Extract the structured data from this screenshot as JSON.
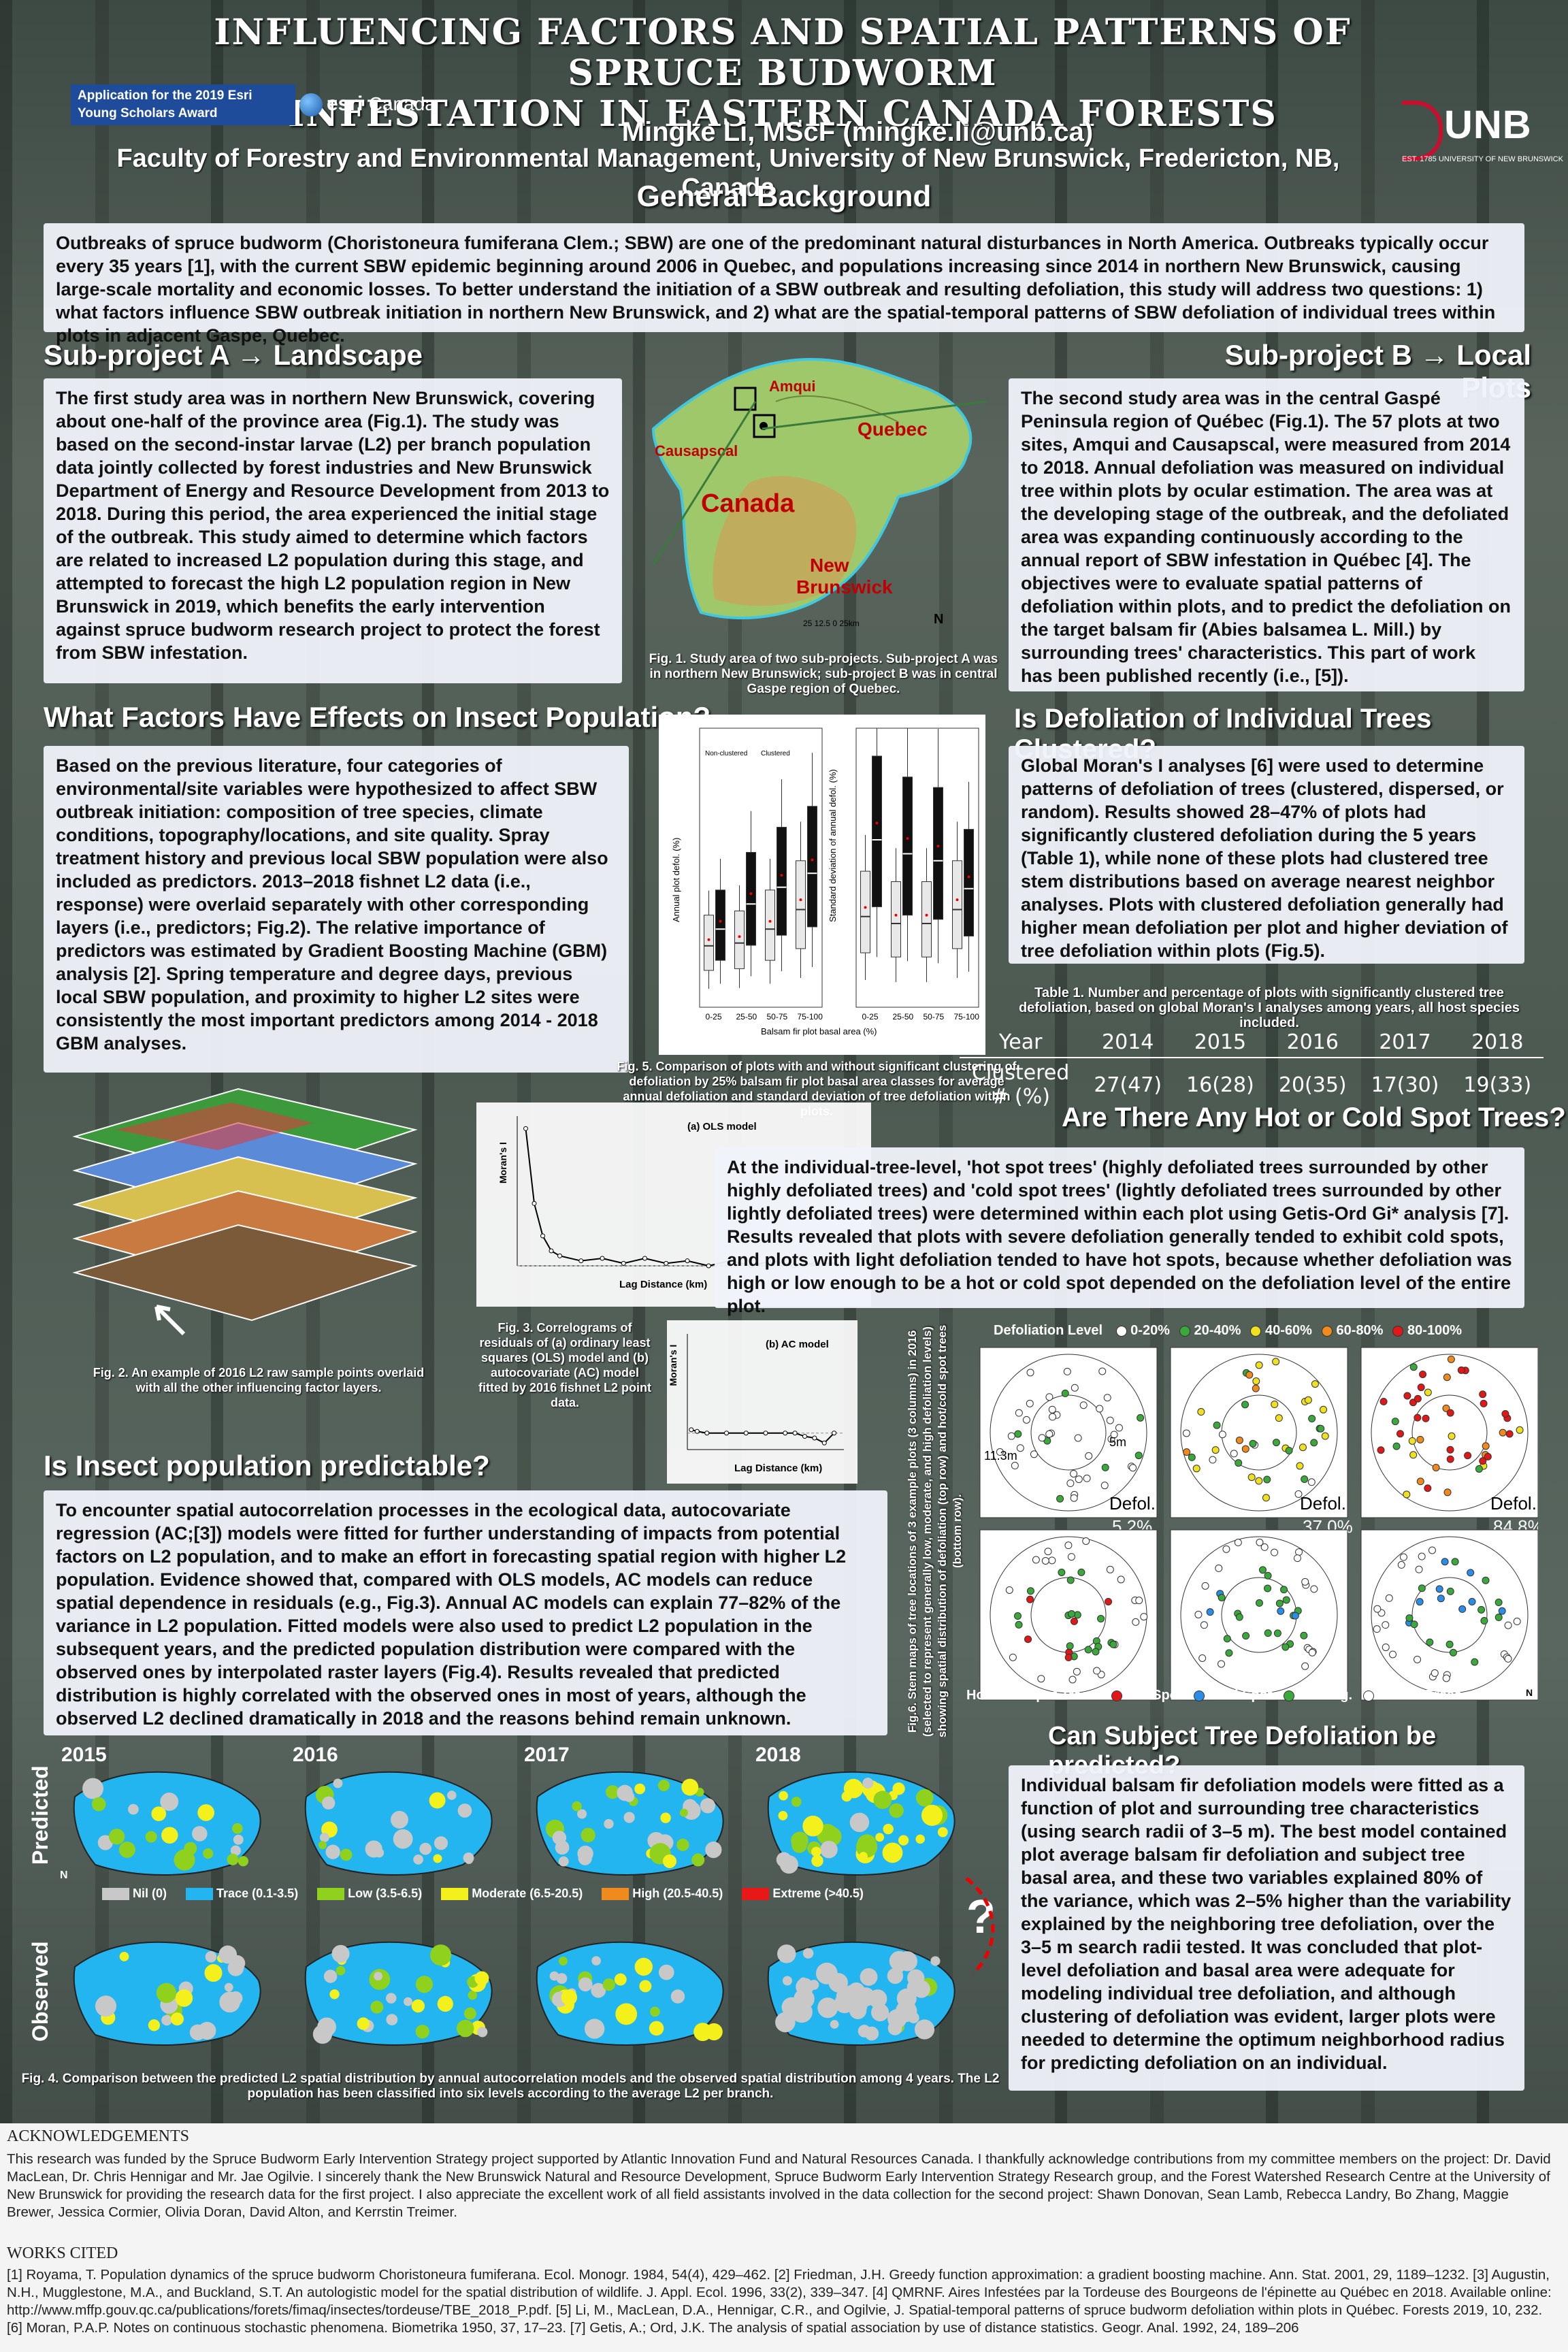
{
  "header": {
    "title_line1": "Influencing Factors and Spatial Patterns of Spruce Budworm",
    "title_line2": "Infestation in Eastern Canada Forests",
    "award": "Application for the 2019 Esri Young Scholars Award",
    "esri": "esri",
    "esri_sub": "Canada",
    "author": "Mingke Li, MScF  (mingke.li@unb.ca)",
    "affiliation": "Faculty of Forestry and Environmental Management, University of New Brunswick, Fredericton, NB, Canada",
    "unb": "UNB",
    "unb_sub": "EST. 1785   UNIVERSITY OF NEW BRUNSWICK"
  },
  "background": {
    "heading": "General Background",
    "text": "Outbreaks of spruce budworm (Choristoneura fumiferana Clem.; SBW) are one of the predominant natural disturbances in North America. Outbreaks typically occur every 35 years [1], with the current SBW epidemic beginning around 2006 in Quebec, and populations increasing since 2014 in northern New Brunswick, causing large-scale mortality and economic losses. To better understand the initiation of a SBW outbreak and resulting defoliation, this study will address two questions: 1) what factors influence SBW outbreak initiation in northern New Brunswick, and 2) what are the spatial-temporal patterns of SBW defoliation of individual trees within plots in adjacent Gaspe, Quebec."
  },
  "subA": {
    "heading": "Sub-project A → Landscape",
    "text": "The first study area was in northern New Brunswick, covering about one-half of the province area (Fig.1). The study was based on the second-instar larvae (L2) per branch population data jointly collected by forest industries and New Brunswick Department of Energy and Resource Development from 2013 to 2018. During this period, the area experienced the initial stage of the outbreak. This study aimed to determine which factors are related to increased L2 population during this stage, and attempted to forecast the high L2 population region in New Brunswick in 2019, which benefits the early intervention against spruce budworm research project to protect the forest from SBW infestation."
  },
  "subB": {
    "heading": "Sub-project B → Local Plots",
    "text": "The second study area was in the central Gaspé Peninsula region of Québec (Fig.1). The 57 plots at two sites, Amqui and Causapscal, were measured from 2014 to 2018. Annual defoliation was measured on individual tree within plots by ocular estimation. The area was at the developing stage of the outbreak, and the defoliated area was expanding continuously according to the annual report of SBW infestation in Québec [4]. The objectives were to evaluate spatial patterns of defoliation within plots, and to predict the defoliation on the target balsam fir (Abies balsamea L. Mill.) by surrounding trees' characteristics. This part of work has been published recently (i.e., [5])."
  },
  "map1": {
    "labels": [
      "Amqui",
      "Quebec",
      "Causapscal",
      "Canada",
      "New",
      "Brunswick"
    ],
    "scale": "25 12.5 0 25km",
    "north": "N",
    "caption": "Fig. 1. Study area of two sub-projects. Sub-project A was in northern New Brunswick; sub-project B was in central Gaspe region of Quebec."
  },
  "factors": {
    "heading": "What Factors Have Effects on Insect Population?",
    "text": "Based on the previous literature, four categories of environmental/site variables were hypothesized to affect SBW outbreak initiation: composition of tree species, climate conditions, topography/locations, and site quality. Spray treatment history and previous local SBW population were also included as predictors. 2013–2018 fishnet L2 data (i.e., response) were overlaid separately with other corresponding layers (i.e., predictors; Fig.2). The relative importance of predictors was estimated by Gradient Boosting Machine (GBM) analysis [2]. Spring temperature and degree days, previous local SBW population, and proximity to higher L2 sites were consistently the most important predictors among 2014 - 2018 GBM analyses."
  },
  "fig2": {
    "caption": "Fig. 2. An example of 2016 L2 raw sample points overlaid with all the other influencing factor layers."
  },
  "fig3": {
    "caption": "Fig. 3. Correlograms of residuals of (a) ordinary least squares (OLS) model and (b) autocovariate (AC) model fitted by 2016 fishnet L2 point data.",
    "ols_label": "(a) OLS model",
    "ac_label": "(b) AC model",
    "ylabel": "Moran's I",
    "xlabel": "Lag Distance (km)"
  },
  "fig5": {
    "caption": "Fig. 5. Comparison of plots with and without significant clustering of defoliation by 25% balsam fir plot basal area classes for average annual defoliation and standard deviation of tree defoliation within plots.",
    "ylabel_left": "Annual plot defol. (%)",
    "ylabel_right": "Standard deviation of annual defol. (%)",
    "xlabel": "Balsam fir plot basal area (%)",
    "legend_non": "Non-clustered",
    "legend_cl": "Clustered"
  },
  "predictable": {
    "heading": "Is Insect population predictable?",
    "text": "To encounter spatial autocorrelation processes in the ecological data, autocovariate regression (AC;[3]) models were fitted for further understanding of impacts from potential factors on L2 population, and to make an effort in forecasting spatial region with higher L2 population. Evidence showed that, compared with OLS models, AC models can reduce spatial dependence in residuals (e.g., Fig.3). Annual AC models can explain 77–82% of the variance in L2 population. Fitted models were also used to predict L2 population in the subsequent years, and the predicted population distribution were compared with the observed ones by interpolated raster layers (Fig.4). Results revealed that predicted distribution is highly correlated with the observed ones in most of years, although the observed L2 declined dramatically in 2018 and the reasons behind remain unknown."
  },
  "fig4": {
    "years": [
      "2015",
      "2016",
      "2017",
      "2018"
    ],
    "row_pred": "Predicted",
    "row_obs": "Observed",
    "north": "N",
    "q": "?",
    "legend": [
      {
        "label": "Nil (0)",
        "color": "#c8c8c8"
      },
      {
        "label": "Trace (0.1-3.5)",
        "color": "#22b5f0"
      },
      {
        "label": "Low (3.5-6.5)",
        "color": "#8fd11c"
      },
      {
        "label": "Moderate (6.5-20.5)",
        "color": "#f4f01c"
      },
      {
        "label": "High (20.5-40.5)",
        "color": "#f08a1c"
      },
      {
        "label": "Extreme (>40.5)",
        "color": "#e81818"
      }
    ],
    "caption": "Fig. 4. Comparison between the predicted L2 spatial distribution by annual autocorrelation models and the observed spatial distribution among 4 years. The L2 population has been classified into six levels according to the average L2 per branch."
  },
  "clustered": {
    "heading": "Is Defoliation of Individual Trees Clustered?",
    "text": "Global Moran's I analyses [6] were used to determine patterns of defoliation of trees (clustered, dispersed, or random). Results showed 28–47% of plots had significantly clustered defoliation during the 5 years (Table 1), while none of these plots had clustered tree stem distributions based on average nearest neighbor analyses. Plots with clustered defoliation generally had higher mean defoliation per plot and higher deviation of tree defoliation within plots (Fig.5)."
  },
  "table1": {
    "caption": "Table 1. Number and percentage of plots with significantly clustered tree defoliation, based on global Moran's I analyses among years, all host species included.",
    "header": [
      "Year",
      "2014",
      "2015",
      "2016",
      "2017",
      "2018"
    ],
    "row": [
      "Clustered # (%)",
      "27(47)",
      "16(28)",
      "20(35)",
      "17(30)",
      "19(33)"
    ]
  },
  "hotspot": {
    "heading": "Are There Any Hot or Cold Spot Trees?",
    "text": "At the individual-tree-level, 'hot spot trees' (highly defoliated trees surrounded by other highly defoliated trees) and 'cold spot trees' (lightly defoliated trees surrounded by other lightly defoliated trees) were determined within each plot using Getis-Ord Gi* analysis [7]. Results revealed that plots with severe defoliation generally tended to exhibit cold spots, and plots with light defoliation tended to have hot spots, because whether defoliation was high or low enough to be a hot or cold spot depended on the defoliation level of the entire plot."
  },
  "fig6": {
    "caption": "Fig.6. Stem maps of tree locations of 3 example plots (3 columns) in 2016 (selected to represent generally low, moderate, and high defoliation levels) showing spatial distribution of defoliation (top row) and hot/cold spot trees (bottom row).",
    "legend_title": "Defoliation Level",
    "legend": [
      {
        "label": "0-20%",
        "color": "#ffffff"
      },
      {
        "label": "20-40%",
        "color": "#3aa83a"
      },
      {
        "label": "40-60%",
        "color": "#f0e020"
      },
      {
        "label": "60-80%",
        "color": "#f08a1c"
      },
      {
        "label": "80-100%",
        "color": "#e01818"
      }
    ],
    "defol_label": "Defol.",
    "defol": [
      "5.2%",
      "37.0%",
      "84.8%"
    ],
    "r1": "11.3m",
    "r2": "5m",
    "bottom_title": "Hot/Cold Spot Trees",
    "bottom_legend": [
      {
        "label": "Hot Spot",
        "color": "#e01818"
      },
      {
        "label": "Cold Spot",
        "color": "#2a8ee8"
      },
      {
        "label": "Non-sig.",
        "color": "#3aa83a"
      },
      {
        "label": "Border Trees",
        "color": "#ffffff"
      }
    ],
    "north": "N"
  },
  "predicted": {
    "heading": "Can Subject Tree Defoliation be predicted?",
    "text": "Individual balsam fir defoliation models were fitted as a function of plot and surrounding tree characteristics (using search radii of 3–5 m). The best model contained plot average balsam fir defoliation and subject tree basal area, and these two variables explained 80% of the variance, which was 2–5% higher than the variability explained by the neighboring tree defoliation, over the 3–5 m search radii tested. It was concluded that plot-level defoliation and basal area were adequate for modeling individual tree defoliation, and although clustering of defoliation was evident, larger plots were needed to determine the optimum neighborhood radius for predicting defoliation on an individual."
  },
  "ack": {
    "heading": "ACKNOWLEDGEMENTS",
    "text": "This research was funded by the Spruce Budworm Early Intervention Strategy project supported by Atlantic Innovation Fund and Natural Resources Canada. I thankfully acknowledge contributions from my committee members on the project: Dr. David MacLean, Dr. Chris Hennigar and Mr. Jae Ogilvie. I sincerely thank the New Brunswick Natural and Resource Development, Spruce Budworm Early Intervention Strategy Research group, and the Forest Watershed Research Centre at the University of New Brunswick for providing the research data for the first project. I also appreciate the excellent work of all field assistants involved in the data collection for the second project: Shawn Donovan, Sean Lamb, Rebecca Landry, Bo Zhang, Maggie Brewer, Jessica Cormier, Olivia Doran, David Alton, and Kerrstin Treimer.",
    "works_heading": "WORKS CITED",
    "works": "[1] Royama, T. Population dynamics of the spruce budworm Choristoneura fumiferana. Ecol. Monogr. 1984, 54(4), 429–462. [2] Friedman, J.H. Greedy function approximation: a gradient boosting machine. Ann. Stat. 2001, 29, 1189–1232. [3] Augustin, N.H., Mugglestone, M.A., and Buckland, S.T. An autologistic model for the spatial distribution of wildlife. J. Appl. Ecol. 1996, 33(2), 339–347. [4] QMRNF. Aires Infestées par la Tordeuse des Bourgeons de l'épinette au Québec en 2018. Available online: http://www.mffp.gouv.qc.ca/publications/forets/fimaq/insectes/tordeuse/TBE_2018_P.pdf. [5] Li, M., MacLean, D.A., Hennigar, C.R., and Ogilvie, J. Spatial-temporal patterns of spruce budworm defoliation within plots in Québec. Forests 2019, 10, 232. [6] Moran, P.A.P. Notes on continuous stochastic phenomena. Biometrika 1950, 37, 17–23. [7] Getis, A.; Ord, J.K. The analysis of spatial association by use of distance statistics. Geogr. Anal. 1992, 24, 189–206"
  },
  "chart_data": [
    {
      "type": "box",
      "title": "",
      "ylabel": "Annual plot defol. (%)",
      "xlabel": "Balsam fir plot basal area (%)",
      "categories": [
        "0-25",
        "25-50",
        "50-75",
        "75-100"
      ],
      "ylim": [
        0,
        100
      ],
      "series": [
        {
          "name": "Non-clustered",
          "median": [
            22,
            23,
            28,
            35
          ]
        },
        {
          "name": "Clustered",
          "median": [
            28,
            37,
            43,
            48
          ]
        }
      ]
    },
    {
      "type": "box",
      "title": "",
      "ylabel": "Standard deviation of annual defol. (%)",
      "xlabel": "Balsam fir plot basal area (%)",
      "categories": [
        "0-25",
        "25-50",
        "50-75",
        "75-100"
      ],
      "ylim": [
        0,
        40
      ],
      "series": [
        {
          "name": "Non-clustered",
          "median": [
            13,
            12,
            12,
            14
          ]
        },
        {
          "name": "Clustered",
          "median": [
            24,
            22,
            21,
            17
          ]
        }
      ]
    },
    {
      "type": "line",
      "title": "(a) OLS model",
      "xlabel": "Lag Distance (km)",
      "ylabel": "Moran's I",
      "xlim": [
        0,
        80
      ],
      "ylim": [
        0,
        0.6
      ],
      "x": [
        2,
        4,
        6,
        8,
        10,
        15,
        20,
        25,
        30,
        35,
        40,
        45,
        50,
        55,
        60,
        65,
        70,
        75
      ],
      "y": [
        0.55,
        0.25,
        0.12,
        0.06,
        0.04,
        0.02,
        0.03,
        0.01,
        0.03,
        0.01,
        0.02,
        0.0,
        0.02,
        0.0,
        0.02,
        0.0,
        0.01,
        0.01
      ]
    },
    {
      "type": "line",
      "title": "(b) AC model",
      "xlabel": "Lag Distance (km)",
      "ylabel": "Moran's I",
      "xlim": [
        0,
        80
      ],
      "ylim": [
        -0.1,
        0.6
      ],
      "x": [
        2,
        5,
        10,
        20,
        30,
        40,
        50,
        55,
        60,
        65,
        70,
        75
      ],
      "y": [
        0.02,
        0.01,
        0.0,
        0.0,
        0.0,
        0.0,
        0.0,
        0.0,
        -0.02,
        -0.03,
        -0.06,
        0.0
      ]
    }
  ]
}
